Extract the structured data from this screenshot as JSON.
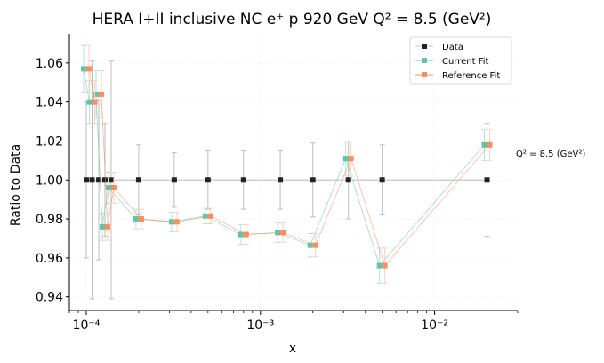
{
  "chart_data": {
    "type": "scatter",
    "title": "HERA I+II inclusive NC e⁺ p 920 GeV Q² = 8.5 (GeV²)",
    "xlabel": "x",
    "ylabel": "Ratio to Data",
    "xscale": "log",
    "xlim": [
      8e-05,
      0.03
    ],
    "ylim": [
      0.933,
      1.075
    ],
    "grid": true,
    "legend_position": "top-right",
    "x_tick_labels": [
      "10⁻⁴",
      "10⁻³",
      "10⁻²"
    ],
    "x_tick_values": [
      0.0001,
      0.001,
      0.01
    ],
    "y_tick_labels": [
      "0.94",
      "0.96",
      "0.98",
      "1.00",
      "1.02",
      "1.04",
      "1.06"
    ],
    "y_tick_values": [
      0.94,
      0.96,
      0.98,
      1.0,
      1.02,
      1.04,
      1.06
    ],
    "annotation": "Q² = 8.5 (GeV²)",
    "x": [
      0.0001,
      0.000108,
      0.000118,
      0.000128,
      0.000139,
      0.0002,
      0.00032,
      0.0005,
      0.0008,
      0.0013,
      0.002,
      0.0032,
      0.005,
      0.02
    ],
    "series": [
      {
        "name": "Data",
        "color": "#222222",
        "marker": "square",
        "values": [
          1,
          1,
          1,
          1,
          1,
          1,
          1,
          1,
          1,
          1,
          1,
          1,
          1,
          1
        ],
        "errors": [
          0.04,
          0.061,
          0.041,
          0.029,
          0.061,
          0.018,
          0.014,
          0.015,
          0.015,
          0.015,
          0.019,
          0.02,
          0.018,
          0.029
        ]
      },
      {
        "name": "Current Fit",
        "color": "#66c2a5",
        "marker": "square",
        "values": [
          1.057,
          1.04,
          1.044,
          0.976,
          0.996,
          0.98,
          0.9785,
          0.9815,
          0.972,
          0.973,
          0.9665,
          1.011,
          0.956,
          1.018
        ],
        "errors": [
          0.012,
          0.011,
          0.012,
          0.007,
          0.008,
          0.005,
          0.005,
          0.004,
          0.005,
          0.005,
          0.006,
          0.009,
          0.009,
          0.008
        ]
      },
      {
        "name": "Reference Fit",
        "color": "#fc8d62",
        "marker": "square",
        "values": [
          1.057,
          1.04,
          1.044,
          0.976,
          0.996,
          0.98,
          0.9785,
          0.9815,
          0.972,
          0.973,
          0.9665,
          1.011,
          0.956,
          1.018
        ],
        "errors": [
          0.012,
          0.011,
          0.012,
          0.007,
          0.008,
          0.005,
          0.005,
          0.004,
          0.005,
          0.005,
          0.006,
          0.009,
          0.009,
          0.008
        ]
      }
    ]
  }
}
